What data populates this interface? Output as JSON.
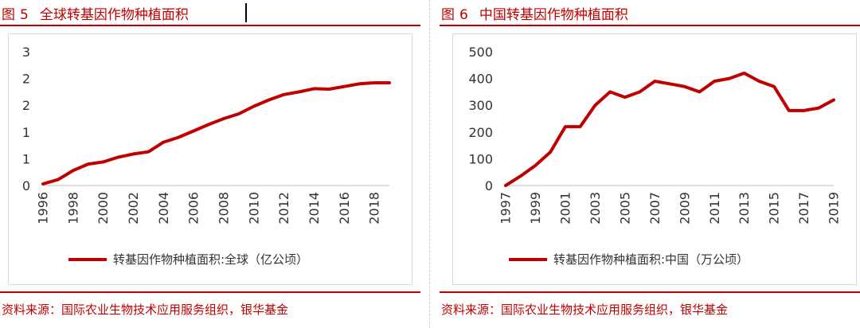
{
  "figures": [
    {
      "fig_prefix": "图",
      "fig_number": "5",
      "title": "全球转基因作物种植面积",
      "source": "资料来源：国际农业生物技术应用服务组织，银华基金",
      "chart_data": {
        "type": "line",
        "x": [
          1996,
          1997,
          1998,
          1999,
          2000,
          2001,
          2002,
          2003,
          2004,
          2005,
          2006,
          2007,
          2008,
          2009,
          2010,
          2011,
          2012,
          2013,
          2014,
          2015,
          2016,
          2017,
          2018,
          2019
        ],
        "series": [
          {
            "name": "转基因作物种植面积:全球（亿公顷）",
            "values": [
              0.03,
              0.11,
              0.28,
              0.4,
              0.44,
              0.53,
              0.59,
              0.63,
              0.81,
              0.9,
              1.02,
              1.14,
              1.25,
              1.34,
              1.48,
              1.6,
              1.7,
              1.75,
              1.81,
              1.8,
              1.85,
              1.9,
              1.92,
              1.92
            ],
            "color": "#c00000"
          }
        ],
        "xtick_labels": [
          "1996",
          "1998",
          "2000",
          "2002",
          "2004",
          "2006",
          "2008",
          "2010",
          "2012",
          "2014",
          "2016",
          "2018"
        ],
        "ytick_labels": [
          "0",
          "1",
          "1",
          "2",
          "2",
          "3"
        ],
        "ylim": [
          0,
          2.5
        ],
        "grid": false,
        "legend_position": "bottom"
      }
    },
    {
      "fig_prefix": "图",
      "fig_number": "6",
      "title": "中国转基因作物种植面积",
      "source": "资料来源：国际农业生物技术应用服务组织，银华基金",
      "chart_data": {
        "type": "line",
        "x": [
          1997,
          1998,
          1999,
          2000,
          2001,
          2002,
          2003,
          2004,
          2005,
          2006,
          2007,
          2008,
          2009,
          2010,
          2011,
          2012,
          2013,
          2014,
          2015,
          2016,
          2017,
          2018,
          2019
        ],
        "series": [
          {
            "name": "转基因作物种植面积:中国（万公顷）",
            "values": [
              0,
              35,
              75,
              125,
              220,
              220,
              300,
              350,
              330,
              350,
              390,
              380,
              370,
              350,
              390,
              400,
              420,
              390,
              370,
              280,
              280,
              290,
              320
            ],
            "color": "#c00000"
          }
        ],
        "xtick_labels": [
          "1997",
          "1999",
          "2001",
          "2003",
          "2005",
          "2007",
          "2009",
          "2011",
          "2013",
          "2015",
          "2017",
          "2019"
        ],
        "ytick_labels": [
          "0",
          "100",
          "200",
          "300",
          "400",
          "500"
        ],
        "ylim": [
          0,
          500
        ],
        "grid": false,
        "legend_position": "bottom"
      }
    }
  ]
}
